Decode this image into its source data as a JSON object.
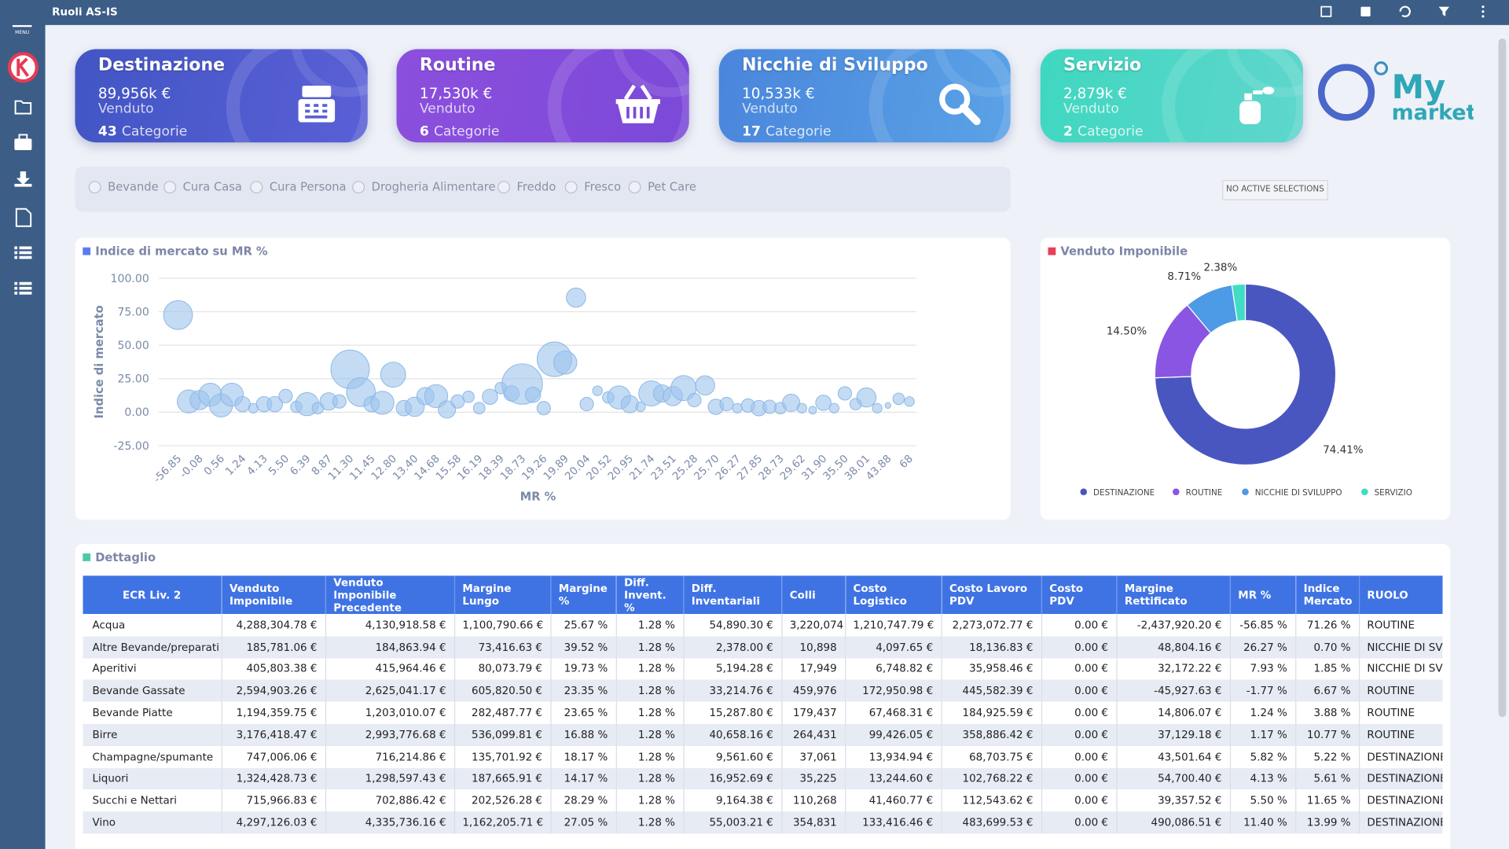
{
  "header": {
    "title": "Ruoli AS-IS",
    "menu_label": "MENU"
  },
  "cards": [
    {
      "title": "Destinazione",
      "value": "89,956k €",
      "label": "Venduto",
      "count": "43",
      "count_label": "Categorie"
    },
    {
      "title": "Routine",
      "value": "17,530k €",
      "label": "Venduto",
      "count": "6",
      "count_label": "Categorie"
    },
    {
      "title": "Nicchie di Sviluppo",
      "value": "10,533k €",
      "label": "Venduto",
      "count": "17",
      "count_label": "Categorie"
    },
    {
      "title": "Servizio",
      "value": "2,879k €",
      "label": "Venduto",
      "count": "2",
      "count_label": "Categorie"
    }
  ],
  "logo": {
    "line1": "My",
    "line2": "market"
  },
  "filters": [
    "Bevande",
    "Cura Casa",
    "Cura Persona",
    "Drogheria Alimentare",
    "Freddo",
    "Fresco",
    "Pet Care"
  ],
  "selection_status": "NO ACTIVE SELECTIONS",
  "chart_data": [
    {
      "type": "bubble",
      "title": "Indice di mercato su MR %",
      "x_label": "MR %",
      "y_label": "Indice di mercato",
      "color": "#9cc3ec",
      "categories": [
        "-56.85",
        null,
        "-0.08",
        null,
        "0.56",
        null,
        "1.24",
        null,
        "4.13",
        null,
        "5.50",
        null,
        "6.39",
        null,
        "8.87",
        null,
        "11.30",
        null,
        "11.45",
        null,
        "12.80",
        null,
        "13.40",
        null,
        "14.68",
        null,
        "15.58",
        null,
        "16.19",
        null,
        "18.39",
        null,
        "18.73",
        null,
        "19.26",
        null,
        "19.89",
        null,
        "20.04",
        null,
        "20.52",
        null,
        "20.95",
        null,
        "21.74",
        null,
        "23.51",
        null,
        "25.28",
        null,
        "25.70",
        null,
        "26.27",
        null,
        "27.85",
        null,
        "28.73",
        null,
        "29.62",
        null,
        "31.90",
        null,
        "35.50",
        null,
        "38.01",
        null,
        "43.88",
        null,
        "68"
      ],
      "values": [
        72.5,
        8,
        9,
        13,
        5,
        13,
        6,
        3,
        6,
        6,
        12,
        4,
        6,
        3,
        8,
        8,
        32,
        15,
        6,
        7,
        28,
        3,
        4,
        12,
        12,
        2,
        8,
        11.5,
        3,
        11.5,
        18,
        14,
        21,
        13,
        3,
        39.5,
        37,
        85.5,
        6,
        16,
        11,
        11,
        6,
        4,
        14,
        14,
        12,
        18,
        9,
        20,
        4,
        6,
        3,
        5,
        3,
        4,
        3,
        7,
        3,
        1.5,
        7,
        3,
        14,
        6,
        11,
        3,
        5,
        10,
        8
      ],
      "sizes": [
        15,
        12,
        10,
        12,
        12,
        12,
        8,
        5,
        8,
        8,
        7,
        6,
        12,
        6,
        9,
        7,
        20,
        15,
        8,
        12,
        13,
        8,
        10,
        9,
        12,
        9,
        7,
        6,
        6,
        8,
        6,
        8,
        21,
        8,
        7,
        18,
        12,
        10,
        7,
        5,
        6,
        12,
        9,
        5,
        13,
        9,
        10,
        13,
        7,
        10,
        8,
        7,
        5,
        7,
        8,
        7,
        6,
        9,
        5,
        4,
        8,
        5,
        7,
        6,
        10,
        5,
        3,
        6,
        5
      ],
      "ylim": [
        -25,
        100
      ],
      "yticks": [
        {
          "value": -25,
          "label": "-25.00"
        },
        {
          "value": 0,
          "label": "0.00"
        },
        {
          "value": 25,
          "label": "25.00"
        },
        {
          "value": 50,
          "label": "50.00"
        },
        {
          "value": 75,
          "label": "75.00"
        },
        {
          "value": 100,
          "label": "100.00"
        }
      ],
      "grid": true
    },
    {
      "type": "donut",
      "title": "Venduto Imponibile",
      "categories": [
        "DESTINAZIONE",
        "ROUTINE",
        "NICCHIE DI SVILUPPO",
        "SERVIZIO"
      ],
      "values": [
        74.41,
        14.5,
        8.71,
        2.38
      ],
      "value_labels": [
        "74.41%",
        "14.50%",
        "8.71%",
        "2.38%"
      ],
      "colors": [
        "#4a56c0",
        "#8a55e3",
        "#4d9ae6",
        "#40dcc6"
      ],
      "legend": "bottom"
    }
  ],
  "table": {
    "title": "Dettaglio",
    "columns": [
      "ECR Liv. 2",
      "Venduto Imponibile",
      "Venduto Imponibile Precedente",
      "Margine Lungo",
      "Margine %",
      "Diff. Invent. %",
      "Diff. Inventariali",
      "Colli",
      "Costo Logistico",
      "Costo Lavoro PDV",
      "Costo PDV",
      "Margine Rettificato",
      "MR %",
      "Indice Mercato",
      "RUOLO"
    ],
    "rows": [
      [
        "Acqua",
        "4,288,304.78 €",
        "4,130,918.58 €",
        "1,100,790.66 €",
        "25.67 %",
        "1.28 %",
        "54,890.30 €",
        "3,220,074",
        "1,210,747.79 €",
        "2,273,072.77 €",
        "0.00 €",
        "-2,437,920.20 €",
        "-56.85 %",
        "71.26 %",
        "ROUTINE"
      ],
      [
        "Altre Bevande/preparati",
        "185,781.06 €",
        "184,863.94 €",
        "73,416.63 €",
        "39.52 %",
        "1.28 %",
        "2,378.00 €",
        "10,898",
        "4,097.65 €",
        "18,136.83 €",
        "0.00 €",
        "48,804.16 €",
        "26.27 %",
        "0.70 %",
        "NICCHIE DI SVILUPPO"
      ],
      [
        "Aperitivi",
        "405,803.38 €",
        "415,964.46 €",
        "80,073.79 €",
        "19.73 %",
        "1.28 %",
        "5,194.28 €",
        "17,949",
        "6,748.82 €",
        "35,958.46 €",
        "0.00 €",
        "32,172.22 €",
        "7.93 %",
        "1.85 %",
        "NICCHIE DI SVILUPPO"
      ],
      [
        "Bevande Gassate",
        "2,594,903.26 €",
        "2,625,041.17 €",
        "605,820.50 €",
        "23.35 %",
        "1.28 %",
        "33,214.76 €",
        "459,976",
        "172,950.98 €",
        "445,582.39 €",
        "0.00 €",
        "-45,927.63 €",
        "-1.77 %",
        "6.67 %",
        "ROUTINE"
      ],
      [
        "Bevande Piatte",
        "1,194,359.75 €",
        "1,203,010.07 €",
        "282,487.77 €",
        "23.65 %",
        "1.28 %",
        "15,287.80 €",
        "179,437",
        "67,468.31 €",
        "184,925.59 €",
        "0.00 €",
        "14,806.07 €",
        "1.24 %",
        "3.88 %",
        "ROUTINE"
      ],
      [
        "Birre",
        "3,176,418.47 €",
        "2,993,776.68 €",
        "536,099.81 €",
        "16.88 %",
        "1.28 %",
        "40,658.16 €",
        "264,431",
        "99,426.05 €",
        "358,886.42 €",
        "0.00 €",
        "37,129.18 €",
        "1.17 %",
        "10.77 %",
        "ROUTINE"
      ],
      [
        "Champagne/spumante",
        "747,006.06 €",
        "716,214.86 €",
        "135,701.92 €",
        "18.17 %",
        "1.28 %",
        "9,561.60 €",
        "37,061",
        "13,934.94 €",
        "68,703.75 €",
        "0.00 €",
        "43,501.64 €",
        "5.82 %",
        "5.22 %",
        "DESTINAZIONE"
      ],
      [
        "Liquori",
        "1,324,428.73 €",
        "1,298,597.43 €",
        "187,665.91 €",
        "14.17 %",
        "1.28 %",
        "16,952.69 €",
        "35,225",
        "13,244.60 €",
        "102,768.22 €",
        "0.00 €",
        "54,700.40 €",
        "4.13 %",
        "5.61 %",
        "DESTINAZIONE"
      ],
      [
        "Succhi e Nettari",
        "715,966.83 €",
        "702,886.42 €",
        "202,526.28 €",
        "28.29 %",
        "1.28 %",
        "9,164.38 €",
        "110,268",
        "41,460.77 €",
        "112,543.62 €",
        "0.00 €",
        "39,357.52 €",
        "5.50 %",
        "11.65 %",
        "DESTINAZIONE"
      ],
      [
        "Vino",
        "4,297,126.03 €",
        "4,335,736.16 €",
        "1,162,205.71 €",
        "27.05 %",
        "1.28 %",
        "55,003.21 €",
        "354,831",
        "133,416.46 €",
        "483,699.53 €",
        "0.00 €",
        "490,086.51 €",
        "11.40 %",
        "13.99 %",
        "DESTINAZIONE"
      ]
    ]
  }
}
